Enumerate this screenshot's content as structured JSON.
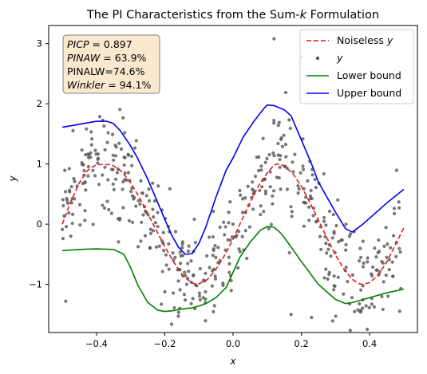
{
  "chart_data": {
    "type": "line",
    "title_parts": [
      {
        "text": "The PI Characteristics from the Sum-",
        "italic": false
      },
      {
        "text": "k",
        "italic": true
      },
      {
        "text": " Formulation",
        "italic": false
      }
    ],
    "xlabel": "x",
    "ylabel": "y",
    "xlim": [
      -0.54,
      0.54
    ],
    "ylim": [
      -1.8,
      3.3
    ],
    "x_ticks": [
      -0.4,
      -0.2,
      0.0,
      0.2,
      0.4
    ],
    "x_tick_labels": [
      "−0.4",
      "−0.2",
      "0.0",
      "0.2",
      "0.4"
    ],
    "y_ticks": [
      -1,
      0,
      1,
      2,
      3
    ],
    "y_tick_labels": [
      "−1",
      "0",
      "1",
      "2",
      "3"
    ],
    "grid": false,
    "legend_position": "top-right",
    "metrics_box": {
      "position": "top-left",
      "lines": [
        {
          "name": "PICP",
          "italic": true,
          "value": "0.897"
        },
        {
          "name": "PINAW",
          "italic": true,
          "value": "63.9%"
        },
        {
          "name": "PINALW",
          "italic": false,
          "value": "74.6%"
        },
        {
          "name": "Winkler",
          "italic": true,
          "value": "94.1%"
        }
      ]
    },
    "series": [
      {
        "name": "Noiseless y",
        "legend_label_parts": [
          {
            "text": "Noiseless ",
            "italic": false
          },
          {
            "text": "y",
            "italic": true
          }
        ],
        "kind": "line",
        "style": "dashed",
        "color": "#e41a1c",
        "formula": "sin(2*pi*(x+0.5)/0.5)+... approx",
        "x": [
          -0.5,
          -0.475,
          -0.45,
          -0.425,
          -0.4,
          -0.375,
          -0.36,
          -0.35,
          -0.325,
          -0.3,
          -0.275,
          -0.25,
          -0.225,
          -0.2,
          -0.175,
          -0.15,
          -0.125,
          -0.11,
          -0.1,
          -0.075,
          -0.05,
          -0.025,
          0.0,
          0.025,
          0.05,
          0.075,
          0.1,
          0.12,
          0.13,
          0.15,
          0.175,
          0.2,
          0.225,
          0.25,
          0.275,
          0.3,
          0.325,
          0.35,
          0.37,
          0.38,
          0.4,
          0.425,
          0.45,
          0.475,
          0.5
        ],
        "y": [
          0.0,
          0.38,
          0.69,
          0.9,
          0.99,
          0.99,
          0.99,
          0.97,
          0.87,
          0.69,
          0.45,
          0.18,
          -0.1,
          -0.37,
          -0.62,
          -0.83,
          -0.96,
          -1.0,
          -0.99,
          -0.92,
          -0.75,
          -0.52,
          -0.25,
          0.06,
          0.36,
          0.64,
          0.85,
          0.98,
          1.0,
          0.97,
          0.84,
          0.63,
          0.36,
          0.07,
          -0.23,
          -0.51,
          -0.75,
          -0.92,
          -0.99,
          -1.0,
          -0.97,
          -0.85,
          -0.63,
          -0.35,
          -0.06
        ]
      },
      {
        "name": "y",
        "legend_label_parts": [
          {
            "text": "y",
            "italic": true
          }
        ],
        "kind": "scatter",
        "color": "#555555",
        "count": 500,
        "noise_std": 0.38,
        "seed": 7,
        "note_outliers": [
          [
            -0.49,
            -1.28
          ],
          [
            0.12,
            3.08
          ],
          [
            0.17,
            -1.5
          ],
          [
            0.2,
            2.78
          ],
          [
            0.23,
            -1.55
          ],
          [
            -0.21,
            -1.33
          ],
          [
            0.45,
            -0.55
          ]
        ]
      },
      {
        "name": "Lower bound",
        "legend_label_parts": [
          {
            "text": "Lower bound",
            "italic": false
          }
        ],
        "kind": "line",
        "style": "solid",
        "color": "#008000",
        "x": [
          -0.5,
          -0.45,
          -0.4,
          -0.35,
          -0.32,
          -0.3,
          -0.28,
          -0.25,
          -0.22,
          -0.2,
          -0.18,
          -0.15,
          -0.12,
          -0.1,
          -0.08,
          -0.05,
          -0.02,
          0.0,
          0.02,
          0.05,
          0.08,
          0.1,
          0.12,
          0.14,
          0.16,
          0.2,
          0.25,
          0.3,
          0.33,
          0.35,
          0.4,
          0.45,
          0.5
        ],
        "y": [
          -0.44,
          -0.42,
          -0.41,
          -0.42,
          -0.5,
          -0.72,
          -1.0,
          -1.3,
          -1.43,
          -1.45,
          -1.44,
          -1.41,
          -1.39,
          -1.36,
          -1.32,
          -1.22,
          -1.05,
          -0.8,
          -0.55,
          -0.3,
          -0.1,
          -0.04,
          -0.05,
          -0.15,
          -0.3,
          -0.62,
          -1.0,
          -1.25,
          -1.32,
          -1.3,
          -1.22,
          -1.14,
          -1.08
        ]
      },
      {
        "name": "Upper bound",
        "legend_label_parts": [
          {
            "text": "Upper bound",
            "italic": false
          }
        ],
        "kind": "line",
        "style": "solid",
        "color": "#0000ee",
        "x": [
          -0.5,
          -0.45,
          -0.4,
          -0.37,
          -0.35,
          -0.33,
          -0.3,
          -0.28,
          -0.25,
          -0.22,
          -0.2,
          -0.18,
          -0.16,
          -0.14,
          -0.12,
          -0.1,
          -0.08,
          -0.05,
          -0.02,
          0.0,
          0.03,
          0.06,
          0.09,
          0.1,
          0.12,
          0.15,
          0.17,
          0.2,
          0.23,
          0.25,
          0.3,
          0.33,
          0.35,
          0.38,
          0.4,
          0.45,
          0.5
        ],
        "y": [
          1.61,
          1.66,
          1.71,
          1.71,
          1.67,
          1.55,
          1.3,
          1.1,
          0.75,
          0.35,
          0.08,
          -0.18,
          -0.38,
          -0.5,
          -0.49,
          -0.32,
          -0.05,
          0.45,
          0.9,
          1.1,
          1.45,
          1.7,
          1.92,
          1.98,
          1.97,
          1.9,
          1.8,
          1.4,
          1.0,
          0.7,
          0.2,
          -0.08,
          -0.13,
          0.0,
          0.1,
          0.35,
          0.58
        ]
      }
    ]
  }
}
